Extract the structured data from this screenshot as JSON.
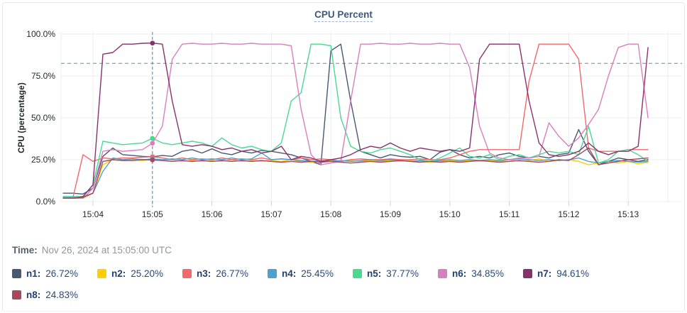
{
  "title": "CPU Percent",
  "time_caption": {
    "label": "Time:",
    "value": "Nov 26, 2024 at 15:05:00 UTC"
  },
  "legend": [
    {
      "name": "n1",
      "value": "26.72%",
      "color": "#475872"
    },
    {
      "name": "n2",
      "value": "25.20%",
      "color": "#FFCD02"
    },
    {
      "name": "n3",
      "value": "26.77%",
      "color": "#F16969"
    },
    {
      "name": "n4",
      "value": "25.45%",
      "color": "#4E9FD2"
    },
    {
      "name": "n5",
      "value": "37.77%",
      "color": "#49D990"
    },
    {
      "name": "n6",
      "value": "34.85%",
      "color": "#D77FBF"
    },
    {
      "name": "n7",
      "value": "94.61%",
      "color": "#87326D"
    },
    {
      "name": "n8",
      "value": "24.83%",
      "color": "#A8475F"
    }
  ],
  "chart_data": {
    "type": "line",
    "title": "CPU Percent",
    "xlabel": "",
    "ylabel": "CPU (percentage)",
    "ylim": [
      0,
      100
    ],
    "grid": true,
    "y_ticks": [
      {
        "v": 100,
        "label": "100.0%"
      },
      {
        "v": 75,
        "label": "75.0%"
      },
      {
        "v": 50,
        "label": "50.0%"
      },
      {
        "v": 25,
        "label": "25.0%"
      },
      {
        "v": 0,
        "label": "0.0%"
      }
    ],
    "x_ticks": [
      "15:04",
      "15:05",
      "15:06",
      "15:07",
      "15:08",
      "15:09",
      "15:10",
      "15:11",
      "15:12",
      "15:13"
    ],
    "x_start_seconds_after_1500": 210,
    "x_step_seconds": 10,
    "threshold_pct": 82.5,
    "crosshair_index": 9,
    "crosshair_time": "15:05:00",
    "series": [
      {
        "name": "n1",
        "color": "#475872",
        "values": [
          5,
          5,
          4.5,
          8,
          27,
          32,
          28,
          27.5,
          27,
          26.72,
          27.5,
          27,
          30,
          31,
          29,
          31.5,
          29,
          28,
          30,
          29,
          30.5,
          30,
          29,
          28,
          26,
          24,
          22,
          90,
          94,
          60,
          30,
          28,
          26,
          28,
          27,
          26.5,
          27,
          25,
          29.5,
          31,
          28,
          26,
          27,
          26,
          28,
          29,
          27,
          26,
          27,
          26,
          28,
          29,
          43,
          30,
          22,
          24,
          26,
          25,
          24,
          25
        ]
      },
      {
        "name": "n2",
        "color": "#FFCD02",
        "values": [
          2,
          2,
          2,
          5,
          22,
          25,
          24.5,
          25,
          24.5,
          25.2,
          24.5,
          25,
          24,
          24.5,
          24,
          24.5,
          24,
          25,
          24,
          24.5,
          24,
          24.5,
          24,
          25,
          24,
          23.5,
          24,
          24.5,
          24,
          24.5,
          24,
          24.5,
          24,
          24.5,
          24,
          24.5,
          24,
          23.5,
          24,
          24.5,
          24,
          24.5,
          24,
          24.5,
          24,
          25,
          24,
          24.5,
          25.5,
          24,
          24.5,
          25,
          24,
          22,
          23,
          24,
          23,
          24,
          22.5,
          23.5
        ]
      },
      {
        "name": "n3",
        "color": "#F16969",
        "values": [
          2,
          3,
          28,
          24,
          26,
          25.5,
          26,
          26,
          26.5,
          26.77,
          26,
          25,
          26,
          25,
          25.5,
          25,
          26,
          25,
          25.5,
          25,
          26,
          25,
          25.5,
          25,
          26,
          25,
          25.5,
          25,
          24,
          25,
          25.5,
          25,
          25,
          25.5,
          25,
          25,
          25.5,
          25,
          25,
          26,
          28,
          30,
          31,
          31,
          31,
          31,
          31,
          72,
          94,
          94,
          94,
          94,
          85,
          32,
          30,
          30,
          30,
          31,
          31,
          31
        ]
      },
      {
        "name": "n4",
        "color": "#4E9FD2",
        "values": [
          2.5,
          2.5,
          3,
          5,
          18,
          26,
          25,
          25.5,
          25,
          25.45,
          25,
          25.5,
          25,
          26,
          25,
          25.5,
          25,
          26,
          25,
          25.5,
          29,
          25,
          25.5,
          25,
          24.5,
          24,
          24.5,
          24,
          24.5,
          24,
          24.5,
          25,
          24.5,
          25,
          24.5,
          24,
          24.5,
          24,
          24.5,
          25,
          24.5,
          25,
          24.5,
          25,
          24.5,
          25,
          25.5,
          25,
          24.5,
          25,
          24.5,
          25,
          26,
          24,
          23,
          24,
          24.5,
          24,
          23.5,
          24
        ]
      },
      {
        "name": "n5",
        "color": "#49D990",
        "values": [
          3,
          3,
          3,
          10,
          36,
          35,
          34,
          34.5,
          35,
          37.77,
          35,
          34,
          35,
          36,
          35,
          33,
          38,
          34,
          32,
          33,
          31,
          30,
          35,
          60,
          65,
          94,
          94,
          93,
          50,
          33,
          30,
          29,
          31,
          32,
          30,
          28,
          25,
          24,
          26,
          29,
          32,
          27,
          26,
          28,
          25,
          27,
          28,
          26,
          28,
          30,
          29,
          30,
          28,
          45,
          23,
          25,
          30,
          31,
          28,
          24
        ]
      },
      {
        "name": "n6",
        "color": "#D77FBF",
        "values": [
          2,
          2,
          2,
          8,
          30,
          31,
          30,
          30.5,
          31,
          34.85,
          45,
          85,
          94,
          94.5,
          94,
          94,
          94.5,
          94,
          94,
          94.5,
          94,
          94,
          94,
          93,
          55,
          28,
          22,
          23,
          24,
          60,
          94,
          94,
          94.5,
          94,
          94,
          94.5,
          94,
          94,
          94.5,
          94,
          94,
          80,
          45,
          29,
          26,
          25,
          26,
          26,
          27,
          47,
          39,
          33,
          38,
          46,
          55,
          75,
          92,
          94,
          94,
          50
        ]
      },
      {
        "name": "n7",
        "color": "#87326D",
        "values": [
          2,
          2,
          3,
          10,
          88,
          89,
          94,
          94,
          94.5,
          94.61,
          94,
          60,
          34,
          33,
          34,
          33,
          31,
          32,
          30,
          31,
          29,
          30,
          33,
          25,
          27,
          26,
          24,
          25,
          26,
          28,
          31,
          33,
          32,
          35,
          32,
          30,
          32,
          31,
          30,
          31,
          30,
          32,
          85,
          94,
          94,
          94,
          94,
          60,
          35,
          28,
          27,
          28,
          30,
          35,
          30,
          28,
          30,
          30,
          33,
          92
        ]
      },
      {
        "name": "n8",
        "color": "#A8475F",
        "values": [
          2,
          2,
          2.5,
          5,
          24,
          25,
          24.5,
          24.5,
          25,
          24.83,
          24.5,
          24,
          24.5,
          24,
          24.5,
          24,
          24.5,
          24,
          24.5,
          24,
          24.5,
          24,
          23.5,
          24,
          23.5,
          24,
          23.5,
          24,
          23.5,
          23,
          23.5,
          24,
          23.5,
          24,
          24.5,
          24,
          23.5,
          24,
          23.5,
          24,
          23.5,
          24,
          24.5,
          24,
          23.5,
          24,
          24.5,
          24,
          23.5,
          24,
          25,
          24.5,
          28,
          32,
          22,
          23,
          24,
          25,
          25.5,
          26
        ]
      }
    ]
  }
}
